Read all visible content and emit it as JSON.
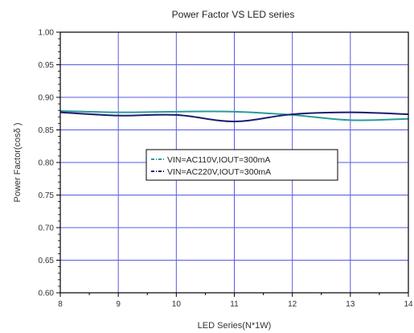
{
  "chart_data": {
    "type": "line",
    "title": "Power Factor VS LED series",
    "xlabel": "LED Series(N*1W)",
    "ylabel": "Power Factor(cosδ )",
    "xlim": [
      8,
      14
    ],
    "ylim": [
      0.6,
      1.0
    ],
    "x_ticks": [
      8,
      9,
      10,
      11,
      12,
      13,
      14
    ],
    "y_ticks": [
      0.6,
      0.65,
      0.7,
      0.75,
      0.8,
      0.85,
      0.9,
      0.95,
      1.0
    ],
    "x_tick_labels": [
      "8",
      "9",
      "10",
      "11",
      "12",
      "13",
      "14"
    ],
    "y_tick_labels": [
      "0.60",
      "0.65",
      "0.70",
      "0.75",
      "0.80",
      "0.85",
      "0.90",
      "0.95",
      "1.00"
    ],
    "grid": true,
    "legend_position": "center-right",
    "series": [
      {
        "name": "VIN=AC110V,IOUT=300mA",
        "color": "#2a9a9a",
        "style": "solid",
        "x": [
          8,
          9,
          10,
          11,
          12,
          13,
          14
        ],
        "y": [
          0.879,
          0.877,
          0.878,
          0.878,
          0.873,
          0.865,
          0.867
        ]
      },
      {
        "name": "VIN=AC220V,IOUT=300mA",
        "color": "#1c1c6e",
        "style": "solid",
        "x": [
          8,
          9,
          10,
          11,
          12,
          13,
          14
        ],
        "y": [
          0.877,
          0.872,
          0.873,
          0.863,
          0.874,
          0.877,
          0.874
        ]
      }
    ]
  }
}
